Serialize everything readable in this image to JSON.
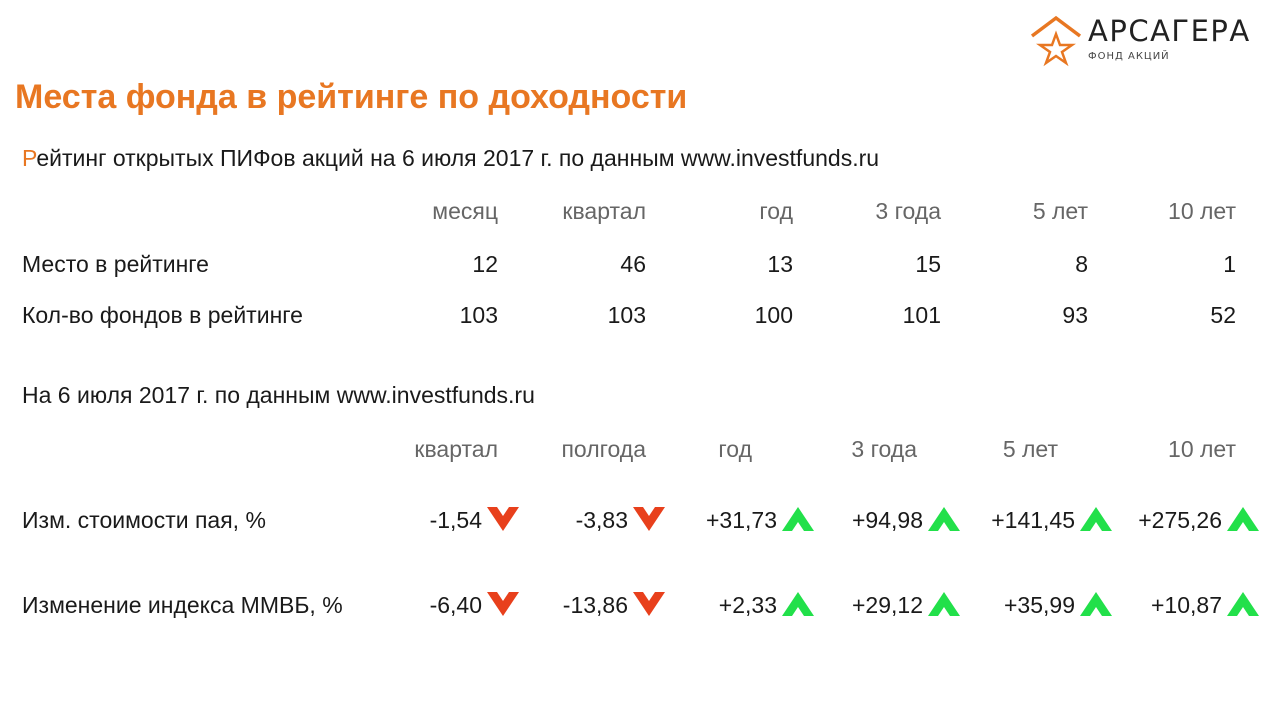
{
  "brand": {
    "name": "АРСАГЕРА",
    "sub": "ФОНД АКЦИЙ",
    "color": "#e87722"
  },
  "title": "Места фонда в рейтинге по доходности",
  "rating": {
    "caption_first": "Р",
    "caption_rest": "ейтинг открытых ПИФов акций на 6 июля 2017 г. по данным www.investfunds.ru",
    "columns": [
      "месяц",
      "квартал",
      "год",
      "3 года",
      "5 лет",
      "10 лет"
    ],
    "rows": [
      {
        "label": "Место в рейтинге",
        "values": [
          "12",
          "46",
          "13",
          "15",
          "8",
          "1"
        ]
      },
      {
        "label": "Кол-во фондов в рейтинге",
        "values": [
          "103",
          "103",
          "100",
          "101",
          "93",
          "52"
        ]
      }
    ]
  },
  "returns": {
    "caption": "На 6 июля 2017 г. по данным www.investfunds.ru",
    "columns": [
      "квартал",
      "полгода",
      "год",
      "3 года",
      "5 лет",
      "10 лет"
    ],
    "rows": [
      {
        "label": "Изм. стоимости пая, %",
        "values": [
          "-1,54",
          "-3,83",
          "+31,73",
          "+94,98",
          "+141,45",
          "+275,26"
        ],
        "directions": [
          "down",
          "down",
          "up",
          "up",
          "up",
          "up"
        ]
      },
      {
        "label": "Изменение индекса ММВБ, %",
        "values": [
          "-6,40",
          "-13,86",
          "+2,33",
          "+29,12",
          "+35,99",
          "+10,87"
        ],
        "directions": [
          "down",
          "down",
          "up",
          "up",
          "up",
          "up"
        ]
      }
    ],
    "colors": {
      "up": "#22e04a",
      "down": "#e8401c"
    }
  }
}
